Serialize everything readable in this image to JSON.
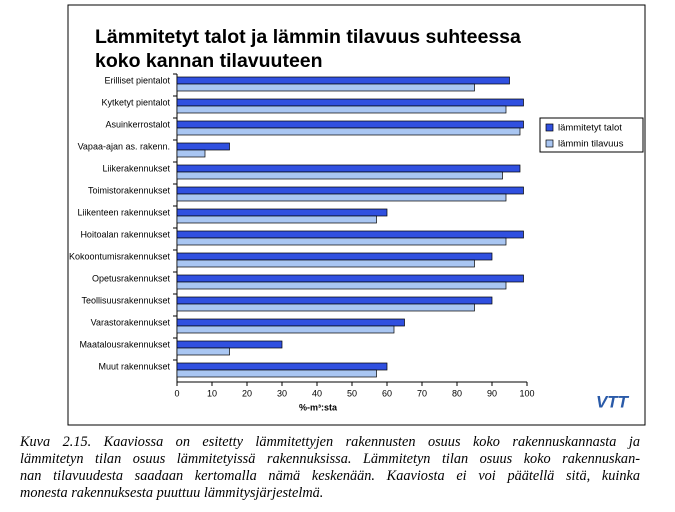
{
  "chart_data": {
    "type": "hbar",
    "title": [
      "Lämmitetyt talot ja lämmin tilavuus suhteessa",
      "koko kannan tilavuuteen"
    ],
    "categories": [
      "Erilliset pientalot",
      "Kytketyt pientalot",
      "Asuinkerrostalot",
      "Vapaa-ajan as. rakenn.",
      "Liikerakennukset",
      "Toimistorakennukset",
      "Liikenteen rakennukset",
      "Hoitoalan rakennukset",
      "Kokoontumisrakennukset",
      "Opetusrakennukset",
      "Teollisuusrakennukset",
      "Varastorakennukset",
      "Maatalousrakennukset",
      "Muut rakennukset"
    ],
    "series": [
      {
        "name": "lämmitetyt talot",
        "color": "#3050e0",
        "values": [
          95,
          99,
          99,
          15,
          98,
          99,
          60,
          99,
          90,
          99,
          90,
          65,
          30,
          60
        ]
      },
      {
        "name": "lämmin tilavuus",
        "color": "#a9c6f2",
        "values": [
          85,
          94,
          98,
          8,
          93,
          94,
          57,
          94,
          85,
          94,
          85,
          62,
          15,
          57
        ]
      }
    ],
    "xlim": [
      0,
      100
    ],
    "xticks": [
      0,
      10,
      20,
      30,
      40,
      50,
      60,
      70,
      80,
      90,
      100
    ],
    "x_label": "%-m³:sta",
    "legend": "right",
    "grid": false
  },
  "logo": "VTT",
  "caption": [
    "Kuva 2.15. Kaaviossa on esitetty lämmitettyjen rakennusten osuus koko rakennuskannasta ja",
    "lämmitetyn tilan osuus lämmitetyissä rakennuksissa. Lämmitetyn tilan osuus koko rakennuskan-",
    "nan tilavuudesta saadaan kertomalla nämä keskenään. Kaaviosta ei voi päätellä sitä, kuinka",
    "monesta rakennuksesta puuttuu lämmitysjärjestelmä."
  ]
}
